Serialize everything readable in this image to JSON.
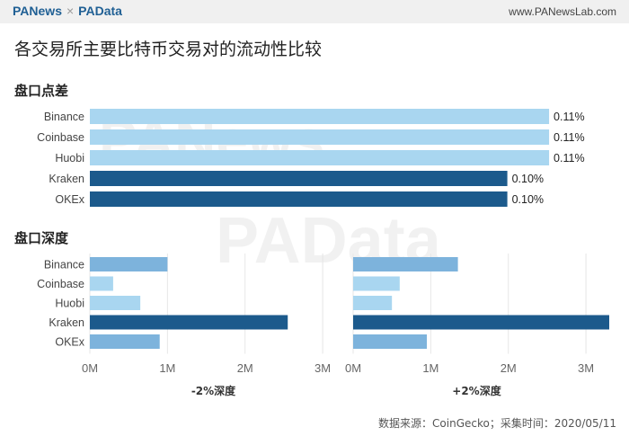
{
  "header": {
    "brand_left": "PANews",
    "brand_sep": "×",
    "brand_right": "PAData",
    "site": "www.PANewsLab.com"
  },
  "title": "各交易所主要比特币交易对的流动性比较",
  "watermark": [
    "PANews",
    "PAData"
  ],
  "colors": {
    "light": "#a9d6f0",
    "medium": "#7db3dc",
    "dark": "#1c5a8c"
  },
  "chart_data": [
    {
      "type": "bar",
      "orientation": "horizontal",
      "title": "盘口点差",
      "categories": [
        "Binance",
        "Coinbase",
        "Huobi",
        "Kraken",
        "OKEx"
      ],
      "values": [
        0.11,
        0.11,
        0.11,
        0.1,
        0.1
      ],
      "value_labels": [
        "0.11%",
        "0.11%",
        "0.11%",
        "0.10%",
        "0.10%"
      ],
      "bar_colors": [
        "#a9d6f0",
        "#a9d6f0",
        "#a9d6f0",
        "#1c5a8c",
        "#1c5a8c"
      ],
      "xlim": [
        0,
        0.113
      ]
    },
    {
      "type": "bar",
      "orientation": "horizontal",
      "title": "盘口深度",
      "categories": [
        "Binance",
        "Coinbase",
        "Huobi",
        "Kraken",
        "OKEx"
      ],
      "xlim": [
        0,
        3.3
      ],
      "xticks": [
        "0M",
        "1M",
        "2M",
        "3M"
      ],
      "series": [
        {
          "name": "-2%深度",
          "values": [
            1.0,
            0.3,
            0.65,
            2.55,
            0.9
          ],
          "bar_colors": [
            "#7db3dc",
            "#a9d6f0",
            "#a9d6f0",
            "#1c5a8c",
            "#7db3dc"
          ]
        },
        {
          "name": "+2%深度",
          "values": [
            1.35,
            0.6,
            0.5,
            3.3,
            0.95
          ],
          "bar_colors": [
            "#7db3dc",
            "#a9d6f0",
            "#a9d6f0",
            "#1c5a8c",
            "#7db3dc"
          ]
        }
      ]
    }
  ],
  "footer": "数据来源：CoinGecko；采集时间：2020/05/11"
}
